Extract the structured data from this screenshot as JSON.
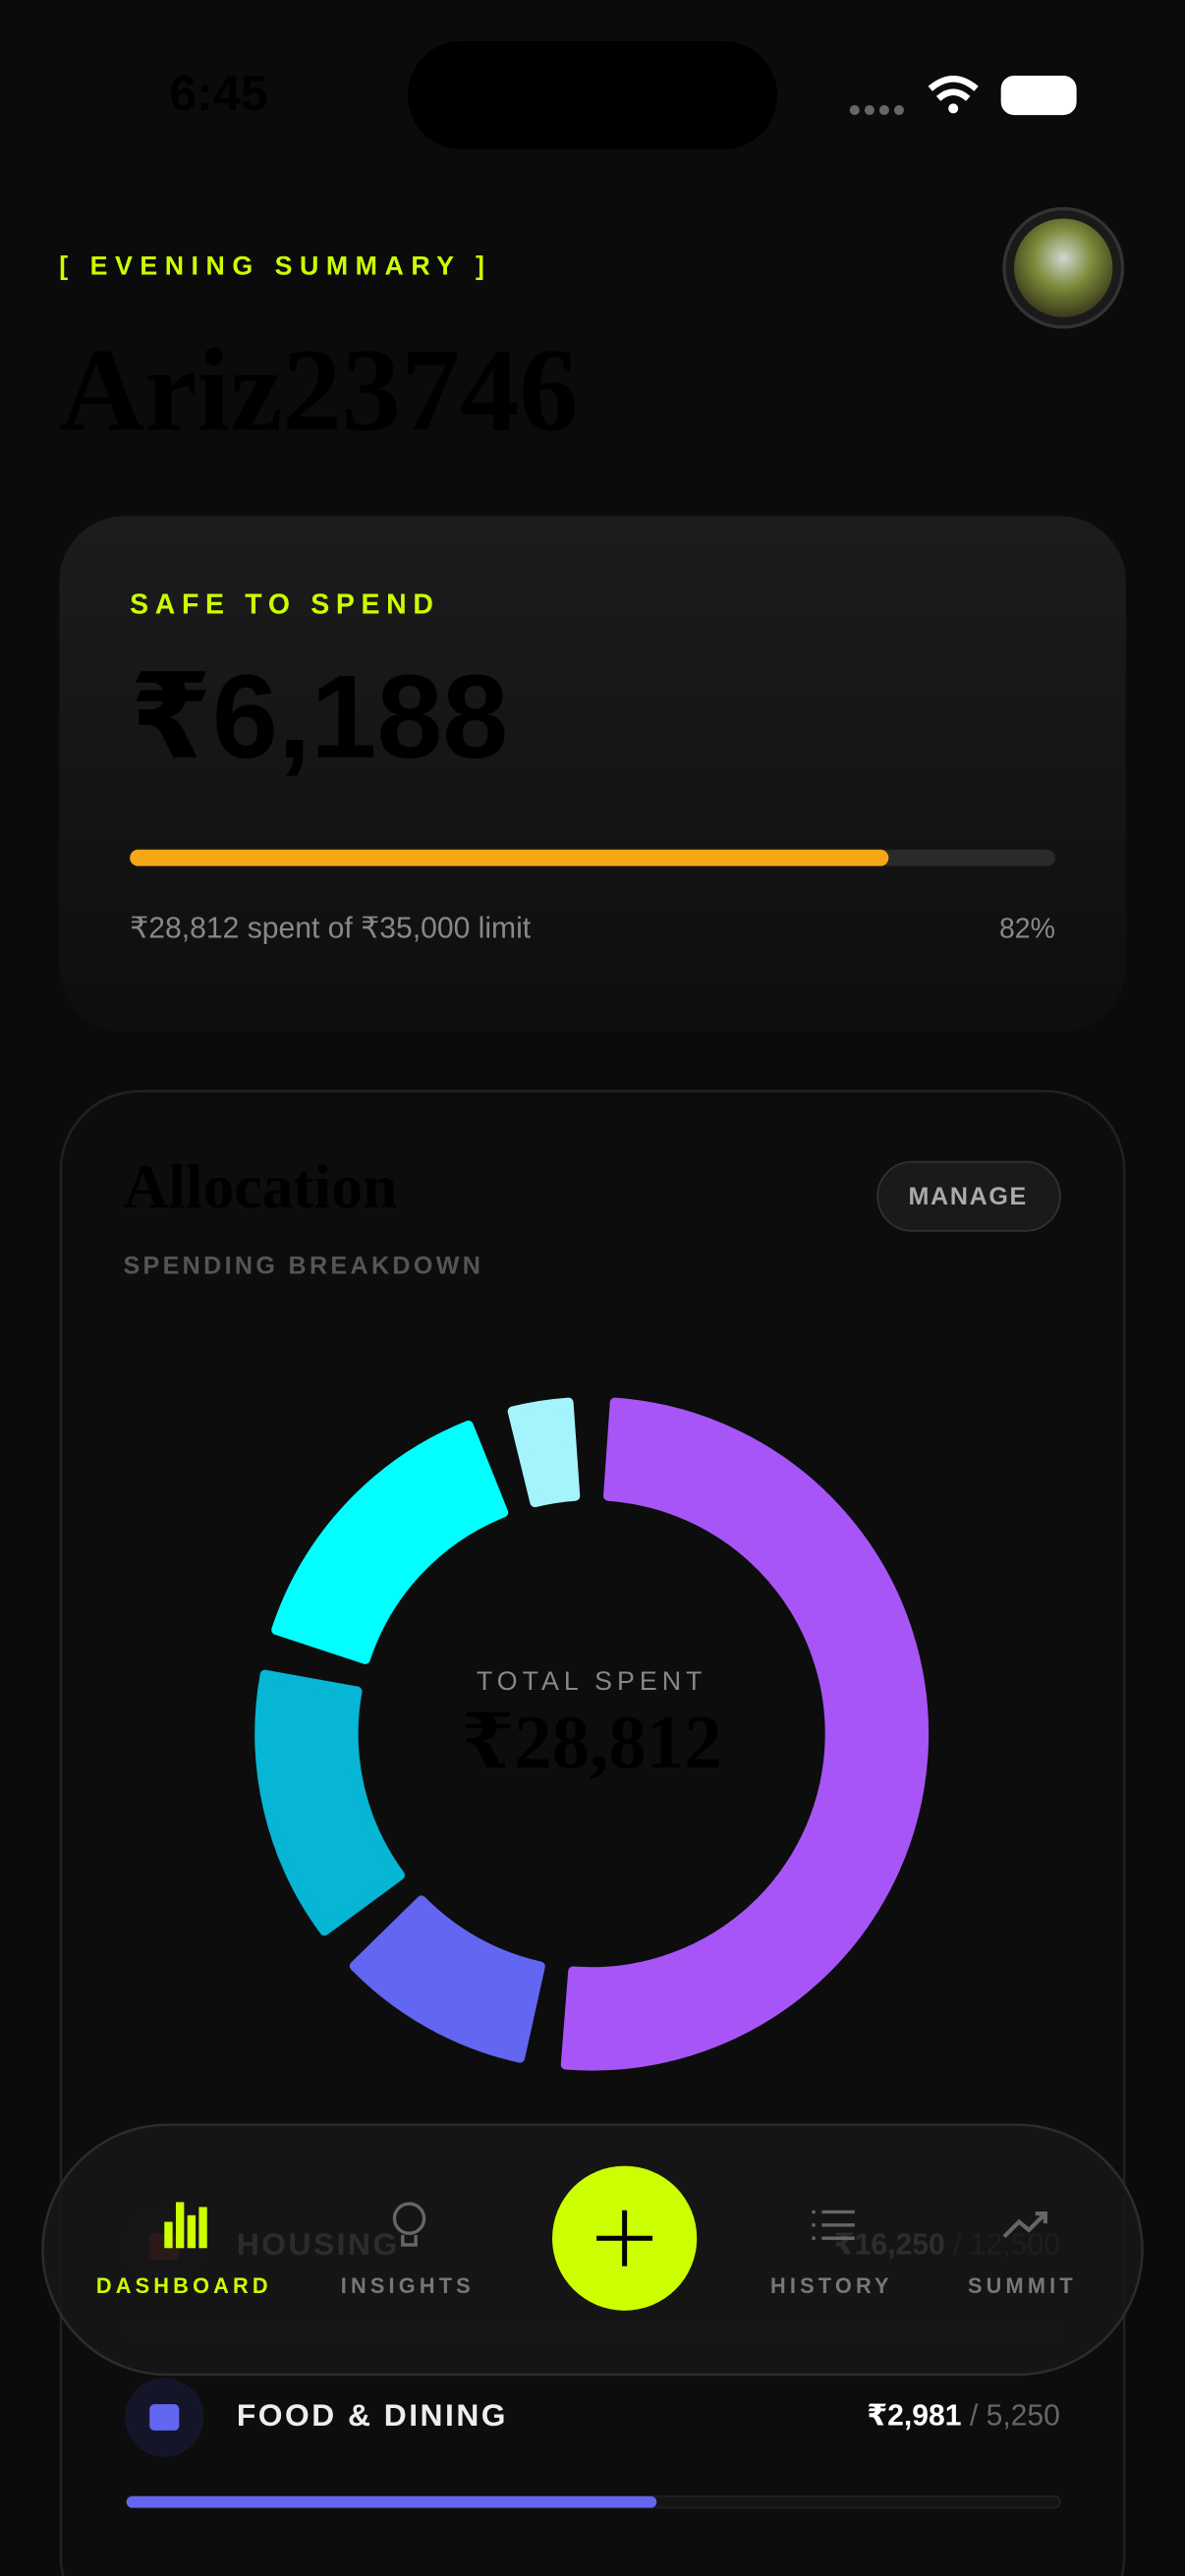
{
  "status_bar": {
    "time": "6:45"
  },
  "header": {
    "label": "[ EVENING SUMMARY ]",
    "username": "Ariz23746"
  },
  "safe_card": {
    "label": "SAFE TO SPEND",
    "amount": "₹6,188",
    "summary": "₹28,812 spent of ₹35,000 limit",
    "percent": {
      "value": 82,
      "label": "82%"
    }
  },
  "allocation": {
    "title": "Allocation",
    "subtitle": "SPENDING BREAKDOWN",
    "button": "MANAGE",
    "center_label": "TOTAL SPENT",
    "center_value": "₹28,812",
    "segments": [
      {
        "color": "#a855f7",
        "value": 16250
      },
      {
        "color": "#6366f1",
        "value": 2981
      },
      {
        "color": "#06b6d4",
        "value": 4200
      },
      {
        "color": "#00ffff",
        "value": 4500
      },
      {
        "color": "#a5f3fc",
        "value": 881
      }
    ]
  },
  "rows": [
    {
      "name": "HOUSING",
      "spent": {
        "value": 16250,
        "label": "₹16,250"
      },
      "limit": {
        "value": 12500,
        "label": "/ 12,500"
      },
      "color": "#ef4444"
    },
    {
      "name": "FOOD & DINING",
      "spent": {
        "value": 2981,
        "label": "₹2,981"
      },
      "limit": {
        "value": 5250,
        "label": "/ 5,250"
      },
      "color": "#6366f1"
    }
  ],
  "nav": {
    "items": [
      "DASHBOARD",
      "INSIGHTS",
      "HISTORY",
      "SUMMIT"
    ]
  }
}
